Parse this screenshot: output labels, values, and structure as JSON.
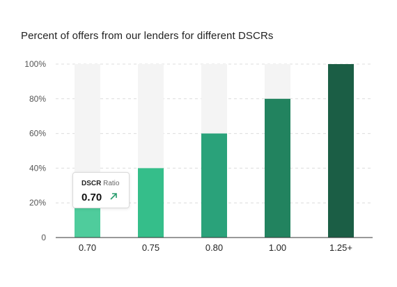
{
  "title": "Percent of offers from our lenders for different DSCRs",
  "tooltip": {
    "label_bold": "DSCR",
    "label_rest": " Ratio",
    "value": "0.70",
    "icon": "arrow-up-right-icon",
    "icon_color": "#2a9d6e"
  },
  "chart_data": {
    "type": "bar",
    "title": "Percent of offers from our lenders for different DSCRs",
    "categories": [
      "0.70",
      "0.75",
      "0.80",
      "1.00",
      "1.25+"
    ],
    "values": [
      20,
      40,
      60,
      80,
      100
    ],
    "ylim": [
      0,
      100
    ],
    "yticks": [
      0,
      20,
      40,
      60,
      80,
      100
    ],
    "ytick_labels": [
      "0",
      "20%",
      "40%",
      "60%",
      "80%",
      "100%"
    ],
    "grid": "dashed horizontal",
    "colors": [
      "#4fcc9c",
      "#35be8a",
      "#2aa27a",
      "#22835f",
      "#1b5e45"
    ],
    "background_bar_color": "#f4f4f4"
  }
}
